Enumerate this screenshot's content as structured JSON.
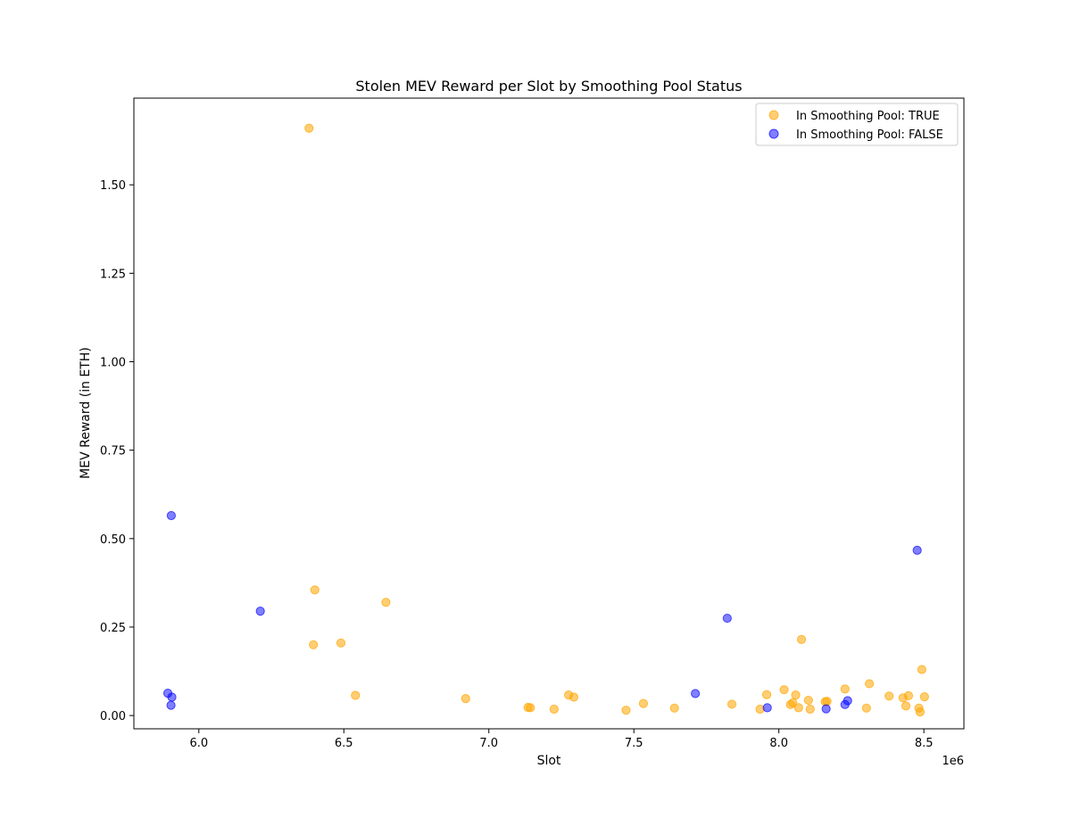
{
  "chart_data": {
    "type": "scatter",
    "title": "Stolen MEV Reward per Slot by Smoothing Pool Status",
    "xlabel": "Slot",
    "ylabel": "MEV Reward (in ETH)",
    "x_offset_label": "1e6",
    "xlim": [
      5776000,
      8638000
    ],
    "ylim": [
      -0.0375,
      1.745
    ],
    "xticks": [
      6000000,
      6500000,
      7000000,
      7500000,
      8000000,
      8500000
    ],
    "xtick_labels": [
      "6.0",
      "6.5",
      "7.0",
      "7.5",
      "8.0",
      "8.5"
    ],
    "yticks": [
      0.0,
      0.25,
      0.5,
      0.75,
      1.0,
      1.25,
      1.5
    ],
    "ytick_labels": [
      "0.00",
      "0.25",
      "0.50",
      "0.75",
      "1.00",
      "1.25",
      "1.50"
    ],
    "grid": false,
    "legend_position": "top-right",
    "series": [
      {
        "name": "In Smoothing Pool: TRUE",
        "color": "#ffa500",
        "opacity": 0.55,
        "points": [
          [
            6380000,
            1.66
          ],
          [
            6400000,
            0.355
          ],
          [
            6395000,
            0.2
          ],
          [
            6490000,
            0.205
          ],
          [
            6645000,
            0.32
          ],
          [
            6540000,
            0.057
          ],
          [
            6920000,
            0.048
          ],
          [
            7135000,
            0.023
          ],
          [
            7143000,
            0.022
          ],
          [
            7225000,
            0.018
          ],
          [
            7275000,
            0.058
          ],
          [
            7293000,
            0.052
          ],
          [
            7473000,
            0.015
          ],
          [
            7533000,
            0.034
          ],
          [
            7640000,
            0.021
          ],
          [
            7838000,
            0.032
          ],
          [
            7935000,
            0.018
          ],
          [
            7958000,
            0.059
          ],
          [
            8018000,
            0.073
          ],
          [
            8040000,
            0.031
          ],
          [
            8048000,
            0.036
          ],
          [
            8058000,
            0.058
          ],
          [
            8068000,
            0.022
          ],
          [
            8078000,
            0.215
          ],
          [
            8102000,
            0.043
          ],
          [
            8108000,
            0.018
          ],
          [
            8160000,
            0.039
          ],
          [
            8166000,
            0.04
          ],
          [
            8228000,
            0.075
          ],
          [
            8302000,
            0.021
          ],
          [
            8312000,
            0.09
          ],
          [
            8380000,
            0.055
          ],
          [
            8428000,
            0.05
          ],
          [
            8438000,
            0.027
          ],
          [
            8447000,
            0.056
          ],
          [
            8483000,
            0.021
          ],
          [
            8487000,
            0.01
          ],
          [
            8493000,
            0.13
          ],
          [
            8502000,
            0.053
          ]
        ]
      },
      {
        "name": "In Smoothing Pool: FALSE",
        "color": "#0000ff",
        "opacity": 0.5,
        "points": [
          [
            5893000,
            0.063
          ],
          [
            5905000,
            0.565
          ],
          [
            5907000,
            0.052
          ],
          [
            5904000,
            0.029
          ],
          [
            6212000,
            0.295
          ],
          [
            7712000,
            0.062
          ],
          [
            7822000,
            0.275
          ],
          [
            7960000,
            0.022
          ],
          [
            8163000,
            0.019
          ],
          [
            8228000,
            0.031
          ],
          [
            8237000,
            0.042
          ],
          [
            8477000,
            0.467
          ]
        ]
      }
    ]
  }
}
